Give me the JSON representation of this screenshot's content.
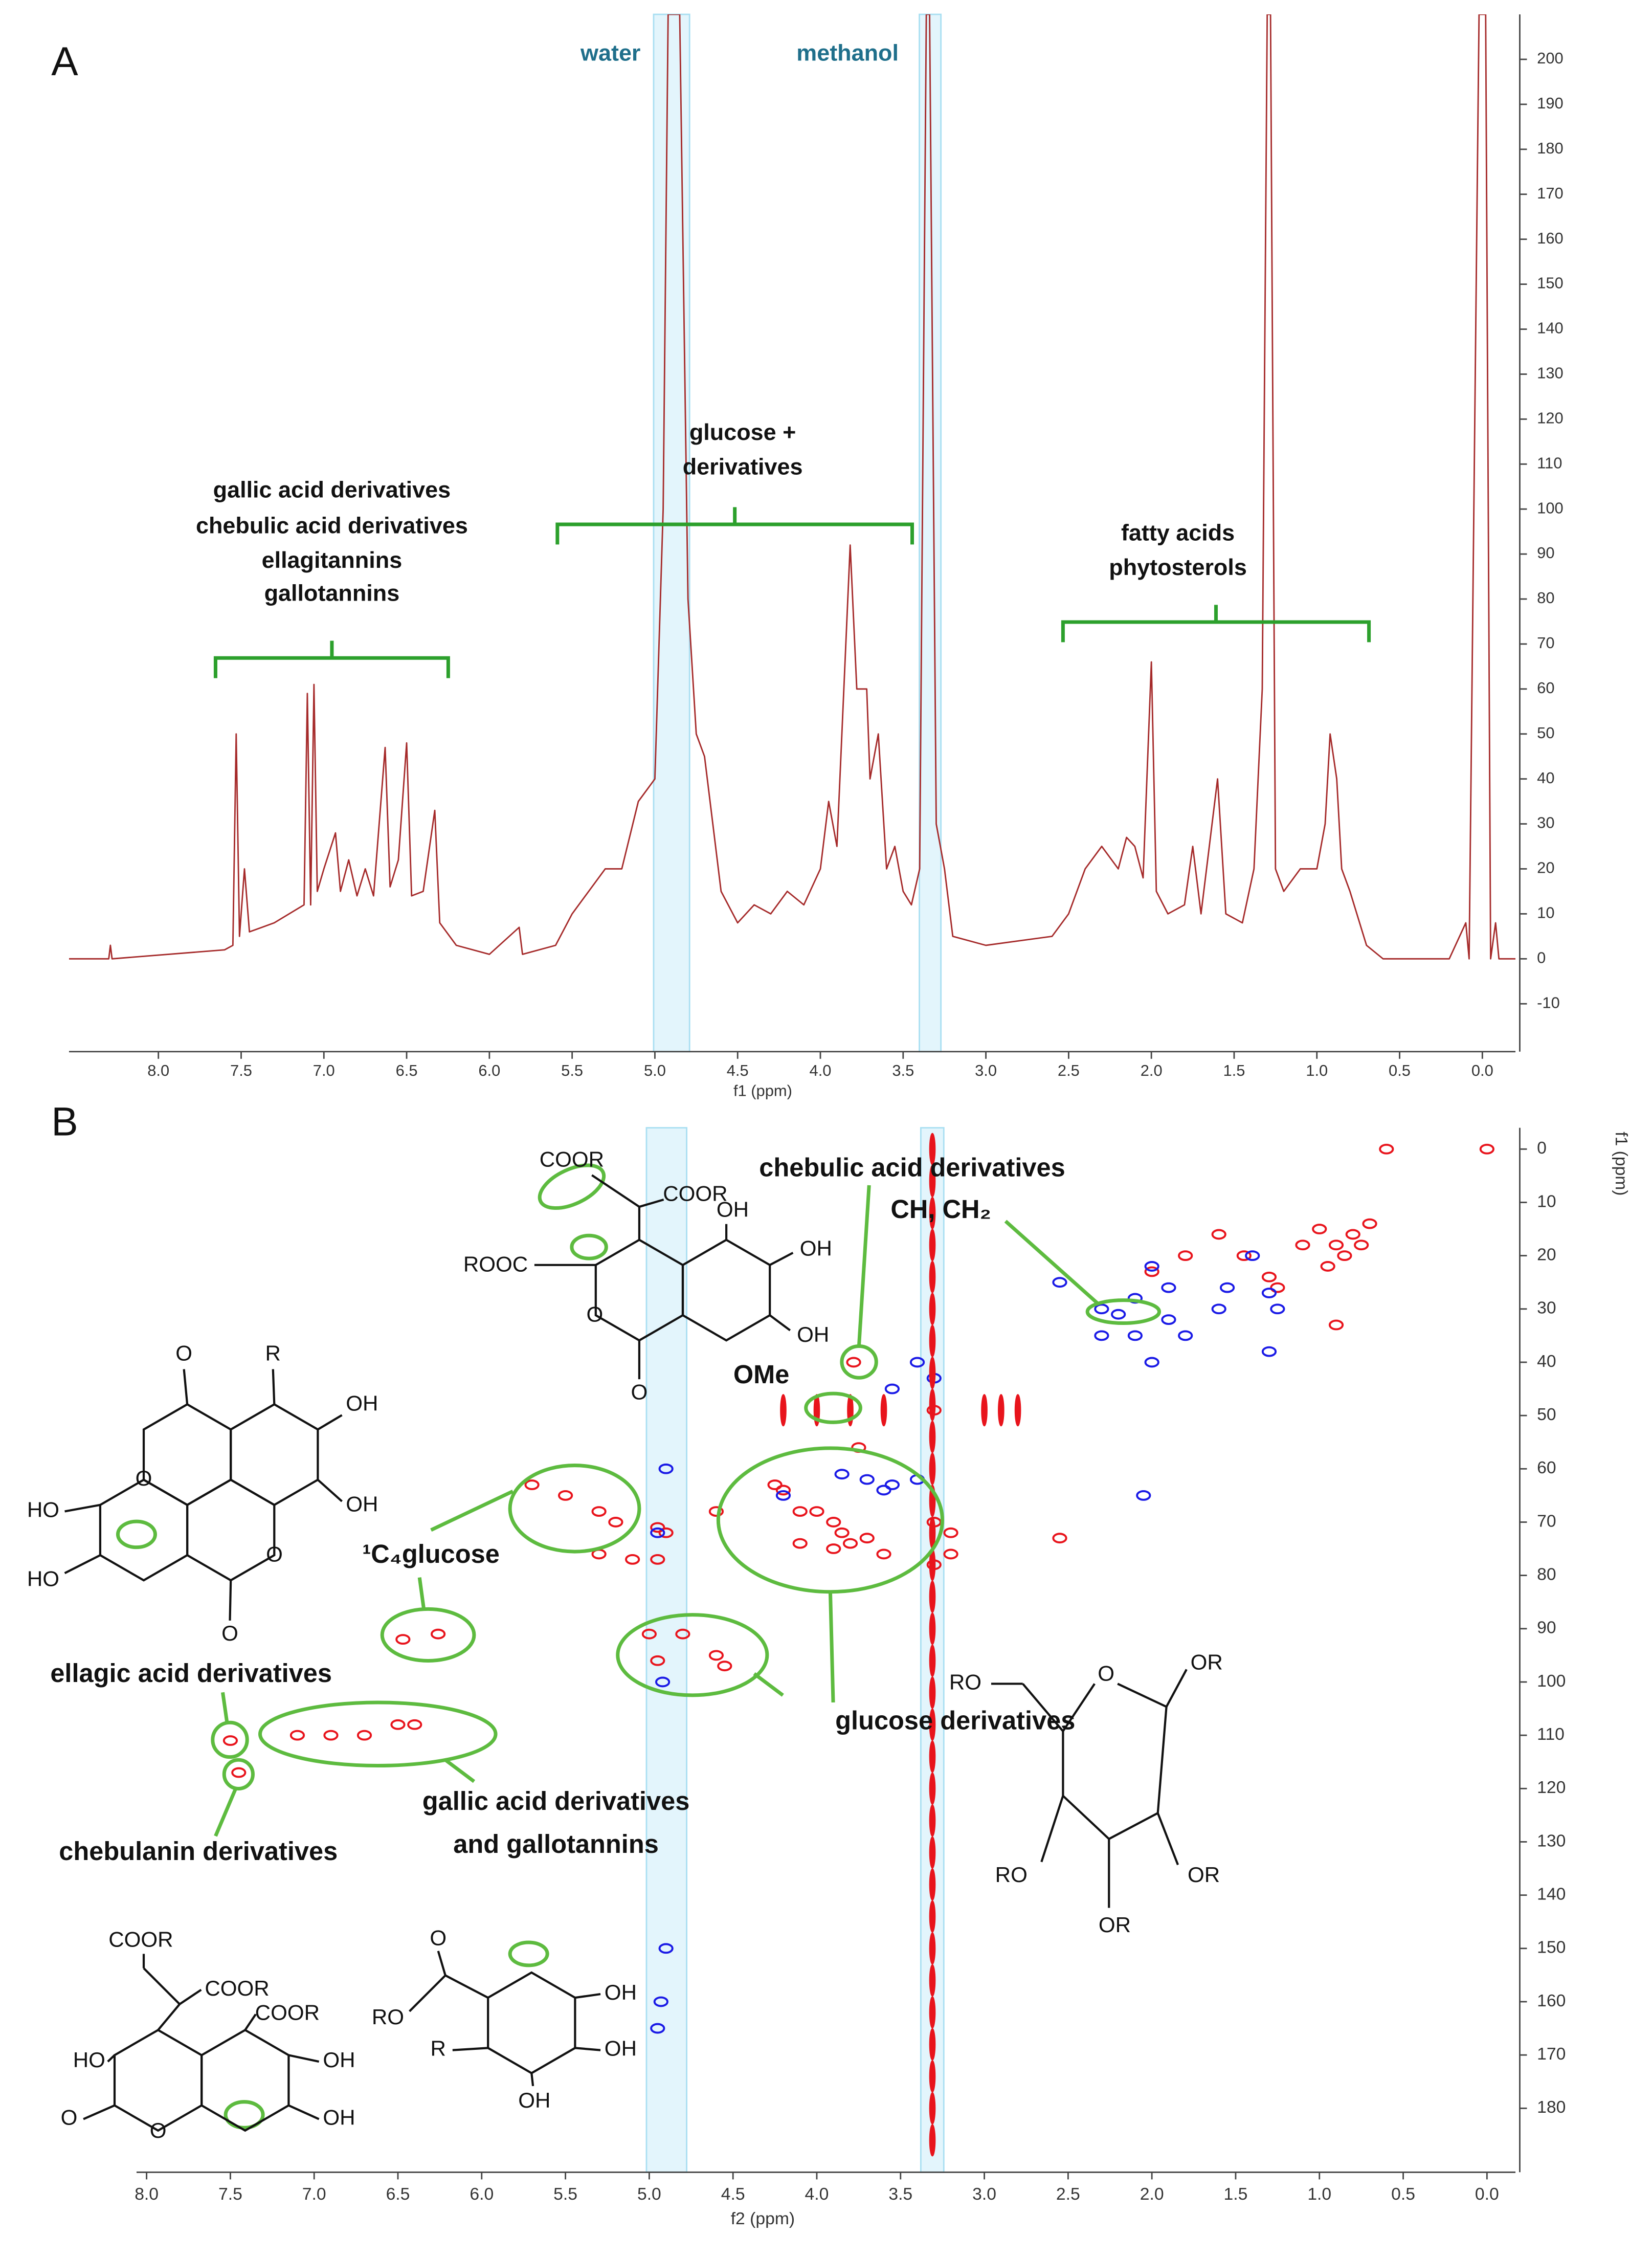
{
  "chart_data": [
    {
      "type": "line",
      "panel_label": "A",
      "xlabel": "f1 (ppm)",
      "color": "#a52a2a",
      "xlim": [
        8.54,
        -0.2
      ],
      "ylim": [
        -20,
        210
      ],
      "xticks": [
        {
          "value": 8,
          "label": "8.0"
        },
        7.5,
        {
          "value": 7,
          "label": "7.0"
        },
        6.5,
        {
          "value": 6,
          "label": "6.0"
        },
        5.5,
        {
          "value": 5,
          "label": "5.0"
        },
        4.5,
        {
          "value": 4,
          "label": "4.0"
        },
        3.5,
        {
          "value": 3,
          "label": "3.0"
        },
        2.5,
        {
          "value": 2,
          "label": "2.0"
        },
        1.5,
        {
          "value": 1,
          "label": "1.0"
        },
        0.5,
        {
          "value": 0,
          "label": "0.0"
        }
      ],
      "yticks": [
        -10,
        0,
        10,
        20,
        30,
        40,
        50,
        60,
        70,
        80,
        90,
        100,
        110,
        120,
        130,
        140,
        150,
        160,
        170,
        180,
        190,
        200
      ],
      "annotations": [
        "water",
        "methanol",
        "gallic acid derivatives",
        "chebulic acid derivatives",
        "ellagitannins",
        "gallotannins",
        "glucose +",
        "derivatives",
        "fatty acids",
        "phytosterols"
      ],
      "x": [
        8.54,
        8.3,
        8.29,
        8.28,
        7.6,
        7.55,
        7.53,
        7.51,
        7.48,
        7.45,
        7.3,
        7.12,
        7.1,
        7.08,
        7.06,
        7.04,
        7.0,
        6.93,
        6.9,
        6.85,
        6.8,
        6.75,
        6.7,
        6.63,
        6.6,
        6.55,
        6.5,
        6.47,
        6.4,
        6.33,
        6.3,
        6.2,
        6.0,
        5.82,
        5.8,
        5.6,
        5.5,
        5.4,
        5.3,
        5.2,
        5.1,
        5.0,
        4.95,
        4.92,
        4.85,
        4.8,
        4.75,
        4.7,
        4.65,
        4.6,
        4.5,
        4.4,
        4.3,
        4.2,
        4.1,
        4.0,
        3.95,
        3.9,
        3.82,
        3.78,
        3.72,
        3.7,
        3.65,
        3.6,
        3.55,
        3.5,
        3.45,
        3.4,
        3.36,
        3.34,
        3.3,
        3.25,
        3.2,
        3.0,
        2.8,
        2.6,
        2.5,
        2.4,
        2.3,
        2.2,
        2.15,
        2.1,
        2.05,
        2.0,
        1.97,
        1.9,
        1.8,
        1.75,
        1.7,
        1.6,
        1.55,
        1.45,
        1.38,
        1.33,
        1.3,
        1.28,
        1.25,
        1.2,
        1.1,
        1.0,
        0.95,
        0.92,
        0.88,
        0.85,
        0.8,
        0.7,
        0.6,
        0.4,
        0.2,
        0.1,
        0.08,
        0.02,
        -0.02,
        -0.05,
        -0.08,
        -0.1,
        -0.2
      ],
      "values": [
        0,
        0,
        3,
        0,
        2,
        3,
        50,
        5,
        20,
        6,
        8,
        12,
        59,
        12,
        61,
        15,
        20,
        28,
        15,
        22,
        14,
        20,
        14,
        47,
        16,
        22,
        48,
        14,
        15,
        33,
        8,
        3,
        1,
        7,
        1,
        3,
        10,
        15,
        20,
        20,
        35,
        40,
        100,
        210,
        210,
        80,
        50,
        45,
        30,
        15,
        8,
        12,
        10,
        15,
        12,
        20,
        35,
        25,
        92,
        60,
        60,
        40,
        50,
        20,
        25,
        15,
        12,
        20,
        210,
        210,
        30,
        20,
        5,
        3,
        4,
        5,
        10,
        20,
        25,
        20,
        27,
        25,
        18,
        66,
        15,
        10,
        12,
        25,
        10,
        40,
        10,
        8,
        20,
        60,
        210,
        210,
        20,
        15,
        20,
        20,
        30,
        50,
        40,
        20,
        15,
        3,
        0,
        0,
        0,
        8,
        0,
        210,
        210,
        0,
        8,
        0,
        0
      ]
    },
    {
      "type": "scatter",
      "panel_label": "B",
      "xlabel": "f2 (ppm)",
      "ylabel": "f1 (ppm)",
      "xlim": [
        8.06,
        -0.17
      ],
      "ylim": [
        192,
        -4
      ],
      "xticks": [
        {
          "value": 8,
          "label": "8.0"
        },
        7.5,
        {
          "value": 7,
          "label": "7.0"
        },
        6.5,
        {
          "value": 6,
          "label": "6.0"
        },
        5.5,
        {
          "value": 5,
          "label": "5.0"
        },
        4.5,
        {
          "value": 4,
          "label": "4.0"
        },
        3.5,
        {
          "value": 3,
          "label": "3.0"
        },
        2.5,
        {
          "value": 2,
          "label": "2.0"
        },
        1.5,
        {
          "value": 1,
          "label": "1.0"
        },
        0.5,
        {
          "value": 0,
          "label": "0.0"
        }
      ],
      "yticks": [
        0,
        10,
        20,
        30,
        40,
        50,
        60,
        70,
        80,
        90,
        100,
        110,
        120,
        130,
        140,
        150,
        160,
        170,
        180
      ],
      "annotations": [
        "chebulic acid derivatives",
        "CH, CH₂",
        "OMe",
        "¹C₄glucose",
        "ellagic acid derivatives",
        "glucose derivatives",
        "gallic acid derivatives",
        "and gallotannins",
        "chebulanin derivatives"
      ],
      "structures": [
        {
          "labels": [
            "COOR",
            "COOR",
            "OH",
            "ROOC",
            "OH",
            "OH",
            "O",
            "O"
          ]
        },
        {
          "labels": [
            "O",
            "R",
            "OH",
            "O",
            "HO",
            "OH",
            "HO",
            "O",
            "O"
          ]
        },
        {
          "labels": [
            "COOR",
            "COOR",
            "COOR",
            "HO",
            "OH",
            "O",
            "O",
            "OH"
          ]
        },
        {
          "labels": [
            "O",
            "OH",
            "RO",
            "OH",
            "R",
            "OH"
          ]
        },
        {
          "labels": [
            "RO",
            "O",
            "OR",
            "RO",
            "OR",
            "OR"
          ]
        }
      ],
      "series": [
        {
          "color": "#e8141c",
          "x": [
            0.0,
            0.6,
            0.7,
            0.75,
            0.8,
            0.85,
            0.9,
            0.95,
            1.0,
            1.1,
            1.3,
            1.45,
            1.6,
            1.8,
            2.0,
            0.9,
            1.25,
            5.7,
            5.5,
            5.3,
            5.2,
            5.1,
            5.3,
            4.95,
            4.9,
            4.6,
            4.2,
            4.1,
            4.0,
            3.9,
            3.85,
            3.8,
            3.7,
            3.3,
            3.2,
            3.9,
            3.75,
            3.78,
            3.3,
            4.1,
            3.6,
            3.3,
            3.2,
            4.95,
            5.0,
            4.8,
            6.47,
            6.26,
            4.6,
            4.55,
            7.5,
            7.45,
            7.1,
            6.9,
            6.7,
            6.5,
            6.4,
            2.55,
            4.25,
            4.95
          ],
          "values": [
            0,
            0,
            14,
            18,
            16,
            20,
            18,
            22,
            15,
            18,
            24,
            20,
            16,
            20,
            23,
            33,
            26,
            63,
            65,
            68,
            70,
            77,
            76,
            71,
            72,
            68,
            64,
            68,
            68,
            70,
            72,
            74,
            73,
            70,
            72,
            75,
            56,
            40,
            49,
            74,
            76,
            78,
            76,
            77,
            91,
            91,
            92,
            91,
            95,
            97,
            111,
            117,
            110,
            110,
            110,
            108,
            108,
            73,
            63,
            96
          ]
        },
        {
          "color": "#1a1ae6",
          "x": [
            2.3,
            2.2,
            2.3,
            2.1,
            2.1,
            2.0,
            1.9,
            1.8,
            1.6,
            1.55,
            1.3,
            1.25,
            1.3,
            2.0,
            1.4,
            1.9,
            2.55,
            3.4,
            3.3,
            3.55,
            3.85,
            3.7,
            3.55,
            3.4,
            3.6,
            4.2,
            2.05,
            4.9,
            4.95,
            4.92,
            4.9,
            4.93,
            4.95
          ],
          "values": [
            30,
            31,
            35,
            35,
            28,
            40,
            32,
            35,
            30,
            26,
            27,
            30,
            38,
            22,
            20,
            26,
            25,
            40,
            43,
            45,
            61,
            62,
            63,
            62,
            64,
            65,
            65,
            60,
            72,
            100,
            150,
            160,
            165
          ]
        },
        {
          "color": "#e8141c",
          "x": [
            3.31,
            3.31,
            3.31,
            3.31,
            3.31,
            3.31,
            3.31,
            3.31,
            3.31,
            3.31,
            3.31,
            3.31,
            3.31,
            3.31,
            3.31,
            3.31,
            3.31,
            3.31,
            3.31,
            3.31,
            3.31,
            3.31,
            3.31,
            3.31,
            3.31,
            3.31,
            3.31,
            3.31,
            3.31,
            3.31,
            3.31,
            3.31,
            4.2,
            4.0,
            3.8,
            3.6,
            3.0,
            2.9,
            2.8
          ],
          "values": [
            0,
            6,
            12,
            18,
            24,
            30,
            36,
            42,
            48,
            54,
            60,
            66,
            72,
            78,
            84,
            90,
            96,
            102,
            108,
            114,
            120,
            126,
            132,
            138,
            144,
            150,
            156,
            162,
            168,
            174,
            180,
            186,
            49,
            49,
            49,
            49,
            49,
            49,
            49
          ]
        }
      ]
    }
  ]
}
